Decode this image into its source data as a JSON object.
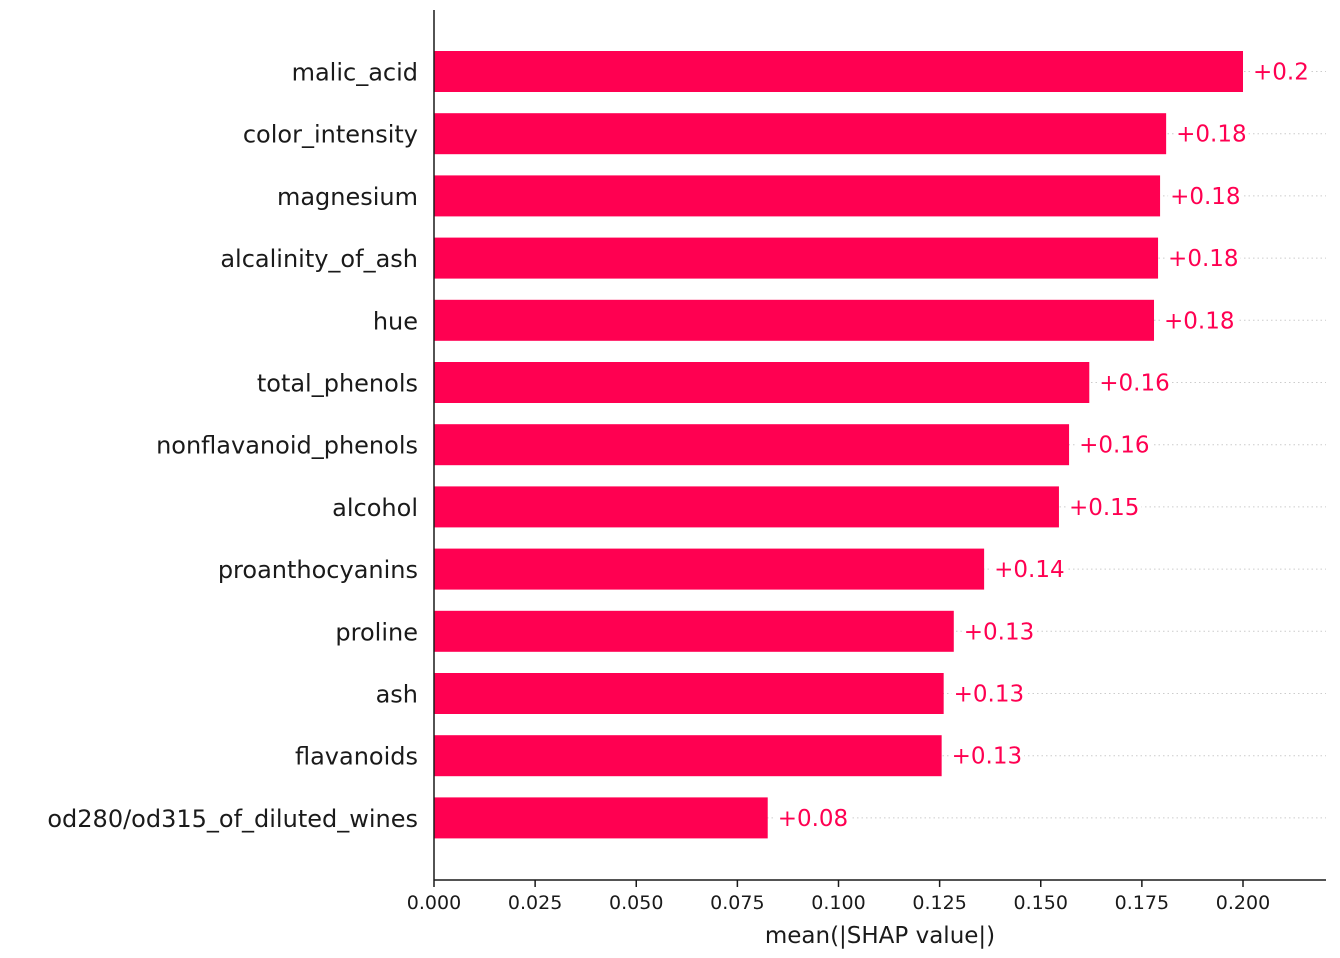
{
  "chart_data": {
    "type": "bar",
    "orientation": "horizontal",
    "categories": [
      "malic_acid",
      "color_intensity",
      "magnesium",
      "alcalinity_of_ash",
      "hue",
      "total_phenols",
      "nonflavanoid_phenols",
      "alcohol",
      "proanthocyanins",
      "proline",
      "ash",
      "flavanoids",
      "od280/od315_of_diluted_wines"
    ],
    "values": [
      0.2,
      0.181,
      0.1795,
      0.179,
      0.178,
      0.162,
      0.157,
      0.1545,
      0.136,
      0.1285,
      0.126,
      0.1255,
      0.0825
    ],
    "data_labels": [
      "+0.2",
      "+0.18",
      "+0.18",
      "+0.18",
      "+0.18",
      "+0.16",
      "+0.16",
      "+0.15",
      "+0.14",
      "+0.13",
      "+0.13",
      "+0.13",
      "+0.08"
    ],
    "xlabel": "mean(|SHAP value|)",
    "xlim": [
      0,
      0.22
    ],
    "xticks": [
      0.0,
      0.025,
      0.05,
      0.075,
      0.1,
      0.125,
      0.15,
      0.175,
      0.2
    ],
    "xtick_labels": [
      "0.000",
      "0.025",
      "0.050",
      "0.075",
      "0.100",
      "0.125",
      "0.150",
      "0.175",
      "0.200"
    ],
    "bar_color": "#ff0051",
    "label_color": "#ff0051",
    "gridlines": "dotted-horizontal"
  }
}
